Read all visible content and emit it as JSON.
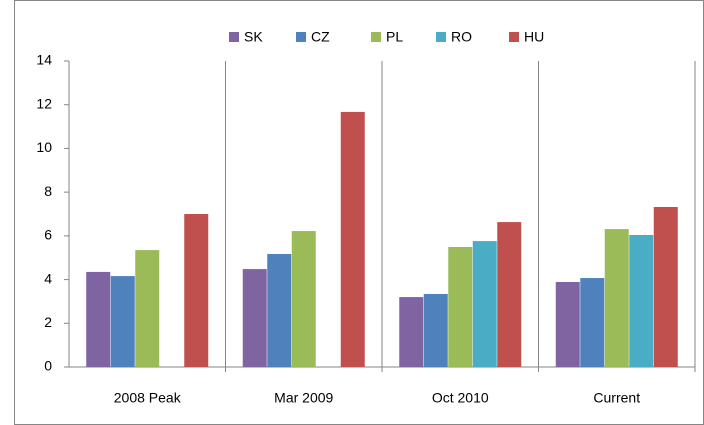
{
  "chart_data": {
    "type": "bar",
    "categories": [
      "2008 Peak",
      "Mar 2009",
      "Oct 2010",
      "Current"
    ],
    "series": [
      {
        "name": "SK",
        "color": "#8064a2",
        "values": [
          4.35,
          4.48,
          3.2,
          3.89
        ]
      },
      {
        "name": "CZ",
        "color": "#4f81bd",
        "values": [
          4.16,
          5.17,
          3.34,
          4.07
        ]
      },
      {
        "name": "PL",
        "color": "#9bbb59",
        "values": [
          5.35,
          6.22,
          5.49,
          6.31
        ]
      },
      {
        "name": "RO",
        "color": "#4bacc6",
        "values": [
          null,
          null,
          5.76,
          6.04
        ]
      },
      {
        "name": "HU",
        "color": "#c0504d",
        "values": [
          7.0,
          11.67,
          6.63,
          7.32
        ]
      }
    ],
    "ylim": [
      0,
      14
    ],
    "yticks": [
      0,
      2,
      4,
      6,
      8,
      10,
      12,
      14
    ],
    "legend": "top"
  }
}
